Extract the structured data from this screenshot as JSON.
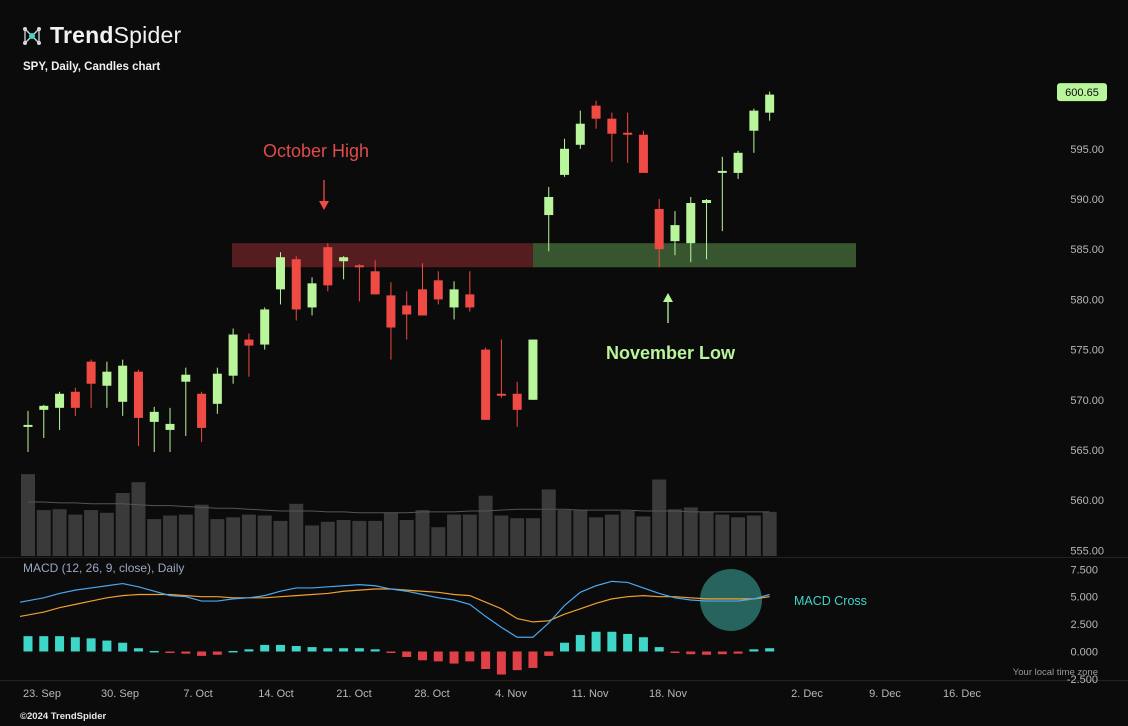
{
  "brand": {
    "name_bold": "Trend",
    "name_light": "Spider",
    "logo_icon": "spider-network-icon"
  },
  "subtitle": "SPY, Daily, Candles chart",
  "footer": "©2024 TrendSpider",
  "local_time_note": "Your local time zone",
  "annotations": {
    "october_high": "October High",
    "november_low": "November Low",
    "macd_cross": "MACD Cross"
  },
  "last_price": "600.65",
  "colors": {
    "up": "#b8f59b",
    "down": "#f04a45",
    "volume": "#3a3a3a",
    "macd_line": "#4aa8f0",
    "signal_line": "#f0a030",
    "hist_pos": "#3fd6c8",
    "hist_neg": "#e04048",
    "resistance_zone": "#5a1f22",
    "support_zone": "#3a5a30",
    "macd_cross_circle": "#2a6e66"
  },
  "chart_data": [
    {
      "type": "candlestick",
      "title": "SPY, Daily, Candles chart",
      "y_axis": {
        "ticks": [
          "555.00",
          "560.00",
          "565.00",
          "570.00",
          "575.00",
          "580.00",
          "585.00",
          "590.00",
          "595.00"
        ],
        "range": [
          553.5,
          603
        ]
      },
      "x_axis_labels": [
        "23. Sep",
        "30. Sep",
        "7. Oct",
        "14. Oct",
        "21. Oct",
        "28. Oct",
        "4. Nov",
        "11. Nov",
        "18. Nov",
        "2. Dec",
        "9. Dec",
        "16. Dec"
      ],
      "candles": [
        {
          "date": "2024-09-23",
          "o": 567.3,
          "h": 568.9,
          "l": 564.8,
          "c": 567.5
        },
        {
          "date": "2024-09-24",
          "o": 569.0,
          "h": 569.5,
          "l": 566.2,
          "c": 569.4
        },
        {
          "date": "2024-09-25",
          "o": 569.2,
          "h": 570.8,
          "l": 567.0,
          "c": 570.6
        },
        {
          "date": "2024-09-26",
          "o": 570.8,
          "h": 571.2,
          "l": 568.4,
          "c": 569.2
        },
        {
          "date": "2024-09-27",
          "o": 573.8,
          "h": 574.0,
          "l": 569.2,
          "c": 571.6
        },
        {
          "date": "2024-09-30",
          "o": 571.4,
          "h": 573.8,
          "l": 569.2,
          "c": 572.8
        },
        {
          "date": "2024-10-01",
          "o": 569.8,
          "h": 574.0,
          "l": 568.4,
          "c": 573.4
        },
        {
          "date": "2024-10-02",
          "o": 572.8,
          "h": 573.0,
          "l": 565.4,
          "c": 568.2
        },
        {
          "date": "2024-10-03",
          "o": 567.8,
          "h": 569.3,
          "l": 564.8,
          "c": 568.8
        },
        {
          "date": "2024-10-04",
          "o": 567.0,
          "h": 569.2,
          "l": 564.8,
          "c": 567.6
        },
        {
          "date": "2024-10-07",
          "o": 571.8,
          "h": 573.2,
          "l": 566.4,
          "c": 572.5
        },
        {
          "date": "2024-10-08",
          "o": 570.6,
          "h": 570.8,
          "l": 565.8,
          "c": 567.2
        },
        {
          "date": "2024-10-09",
          "o": 569.6,
          "h": 573.2,
          "l": 568.6,
          "c": 572.6
        },
        {
          "date": "2024-10-10",
          "o": 572.4,
          "h": 577.1,
          "l": 571.6,
          "c": 576.5
        },
        {
          "date": "2024-10-11",
          "o": 576.0,
          "h": 576.6,
          "l": 572.3,
          "c": 575.4
        },
        {
          "date": "2024-10-14",
          "o": 575.5,
          "h": 579.2,
          "l": 575.0,
          "c": 579.0
        },
        {
          "date": "2024-10-15",
          "o": 581.0,
          "h": 584.7,
          "l": 579.5,
          "c": 584.2
        },
        {
          "date": "2024-10-16",
          "o": 584.0,
          "h": 584.3,
          "l": 577.9,
          "c": 579.0
        },
        {
          "date": "2024-10-17",
          "o": 579.2,
          "h": 582.2,
          "l": 578.4,
          "c": 581.6
        },
        {
          "date": "2024-10-18",
          "o": 585.2,
          "h": 585.6,
          "l": 580.8,
          "c": 581.4
        },
        {
          "date": "2024-10-21",
          "o": 583.8,
          "h": 584.3,
          "l": 582.0,
          "c": 584.2
        },
        {
          "date": "2024-10-22",
          "o": 583.4,
          "h": 583.5,
          "l": 579.8,
          "c": 583.2
        },
        {
          "date": "2024-10-23",
          "o": 582.8,
          "h": 583.9,
          "l": 580.5,
          "c": 580.5
        },
        {
          "date": "2024-10-24",
          "o": 580.4,
          "h": 581.7,
          "l": 574.0,
          "c": 577.2
        },
        {
          "date": "2024-10-25",
          "o": 579.4,
          "h": 580.8,
          "l": 576.0,
          "c": 578.5
        },
        {
          "date": "2024-10-28",
          "o": 581.0,
          "h": 583.6,
          "l": 578.4,
          "c": 578.4
        },
        {
          "date": "2024-10-29",
          "o": 581.9,
          "h": 582.8,
          "l": 579.5,
          "c": 580.0
        },
        {
          "date": "2024-10-30",
          "o": 579.2,
          "h": 581.8,
          "l": 578.0,
          "c": 581.0
        },
        {
          "date": "2024-10-31",
          "o": 580.5,
          "h": 582.8,
          "l": 578.8,
          "c": 579.2
        },
        {
          "date": "2024-11-01",
          "o": 575.0,
          "h": 575.2,
          "l": 568.0,
          "c": 568.0
        },
        {
          "date": "2024-11-04",
          "o": 570.6,
          "h": 576.0,
          "l": 570.2,
          "c": 570.4
        },
        {
          "date": "2024-11-05",
          "o": 570.6,
          "h": 571.8,
          "l": 567.3,
          "c": 569.0
        },
        {
          "date": "2024-11-06",
          "o": 570.0,
          "h": 576.0,
          "l": 570.0,
          "c": 576.0
        },
        {
          "date": "2024-11-07",
          "o": 588.4,
          "h": 591.2,
          "l": 584.8,
          "c": 590.2
        },
        {
          "date": "2024-11-08",
          "o": 592.4,
          "h": 596.0,
          "l": 592.2,
          "c": 595.0
        },
        {
          "date": "2024-11-11",
          "o": 595.4,
          "h": 598.8,
          "l": 595.0,
          "c": 597.5
        },
        {
          "date": "2024-11-12",
          "o": 599.3,
          "h": 599.8,
          "l": 597.0,
          "c": 598.0
        },
        {
          "date": "2024-11-13",
          "o": 598.0,
          "h": 598.6,
          "l": 593.7,
          "c": 596.5
        },
        {
          "date": "2024-11-14",
          "o": 596.6,
          "h": 598.6,
          "l": 593.6,
          "c": 596.4
        },
        {
          "date": "2024-11-15",
          "o": 596.4,
          "h": 596.8,
          "l": 592.6,
          "c": 592.6
        },
        {
          "date": "2024-11-18",
          "o": 589.0,
          "h": 590.0,
          "l": 583.2,
          "c": 585.0
        },
        {
          "date": "2024-11-19",
          "o": 585.8,
          "h": 588.8,
          "l": 584.4,
          "c": 587.4
        },
        {
          "date": "2024-11-20",
          "o": 585.6,
          "h": 590.2,
          "l": 583.7,
          "c": 589.6
        },
        {
          "date": "2024-11-21",
          "o": 589.6,
          "h": 590.0,
          "l": 584.0,
          "c": 589.9
        },
        {
          "date": "2024-11-22",
          "o": 592.6,
          "h": 594.2,
          "l": 586.8,
          "c": 592.8
        },
        {
          "date": "2024-11-25",
          "o": 592.6,
          "h": 594.8,
          "l": 592.0,
          "c": 594.6
        },
        {
          "date": "2024-11-26",
          "o": 596.8,
          "h": 599.0,
          "l": 594.6,
          "c": 598.8
        },
        {
          "date": "2024-11-27",
          "o": 598.6,
          "h": 600.7,
          "l": 597.8,
          "c": 600.4
        }
      ],
      "volume": [
        9.1,
        5.1,
        5.2,
        4.6,
        5.1,
        4.8,
        7.0,
        8.2,
        4.1,
        4.5,
        4.6,
        5.7,
        4.1,
        4.3,
        4.6,
        4.5,
        3.9,
        5.8,
        3.4,
        3.8,
        4.0,
        3.9,
        3.9,
        4.8,
        4.0,
        5.1,
        3.2,
        4.6,
        4.6,
        6.7,
        4.5,
        4.2,
        4.2,
        7.4,
        5.1,
        5.1,
        4.3,
        4.6,
        5.0,
        4.4,
        8.5,
        5.2,
        5.4,
        4.9,
        4.6,
        4.3,
        4.5,
        4.9
      ],
      "volume_ma": [
        6.0,
        6.0,
        5.9,
        5.9,
        5.8,
        5.8,
        5.8,
        5.7,
        5.6,
        5.6,
        5.5,
        5.4,
        5.3,
        5.3,
        5.2,
        5.1,
        5.0,
        5.0,
        5.0,
        4.9,
        4.9,
        4.8,
        4.8,
        4.8,
        4.8,
        4.9,
        4.9,
        4.9,
        5.0,
        5.0,
        5.1,
        5.2,
        5.2,
        5.2,
        5.2,
        5.1,
        5.1,
        5.1,
        5.1,
        5.0,
        5.0,
        5.0,
        4.9,
        4.9,
        4.9,
        4.9,
        4.9,
        4.9
      ],
      "zones": [
        {
          "name": "October High resistance",
          "from": "2024-10-09",
          "to": "2024-11-06",
          "low": 583.2,
          "high": 585.6
        },
        {
          "name": "November Low support",
          "from": "2024-11-06",
          "to": "2024-12-12",
          "low": 583.2,
          "high": 585.6
        }
      ]
    },
    {
      "type": "macd",
      "title": "MACD (12, 26, 9, close), Daily",
      "y_axis": {
        "ticks": [
          "7.500",
          "5.000",
          "2.500",
          "0.000",
          "-2.500"
        ],
        "range": [
          -2.8,
          8.2
        ]
      },
      "macd": [
        4.5,
        4.9,
        5.3,
        5.6,
        5.8,
        6.0,
        6.2,
        5.9,
        5.5,
        5.1,
        5.0,
        4.6,
        4.6,
        4.8,
        4.9,
        5.1,
        5.5,
        5.8,
        5.8,
        5.9,
        6.0,
        6.1,
        6.0,
        5.7,
        5.5,
        5.2,
        4.9,
        4.7,
        4.3,
        3.2,
        2.2,
        1.3,
        1.3,
        2.6,
        4.2,
        5.4,
        6.0,
        6.4,
        6.3,
        5.8,
        5.3,
        4.9,
        4.7,
        4.6,
        4.6,
        4.6,
        4.8,
        5.2
      ],
      "signal": [
        3.2,
        3.6,
        4.0,
        4.3,
        4.6,
        4.9,
        5.1,
        5.2,
        5.2,
        5.2,
        5.1,
        5.0,
        5.0,
        4.9,
        4.9,
        4.9,
        5.0,
        5.1,
        5.2,
        5.3,
        5.5,
        5.6,
        5.7,
        5.7,
        5.6,
        5.5,
        5.4,
        5.2,
        5.1,
        4.5,
        3.9,
        3.0,
        2.7,
        2.8,
        3.4,
        3.9,
        4.4,
        4.8,
        5.0,
        5.1,
        5.0,
        5.0,
        4.9,
        4.8,
        4.8,
        4.8,
        4.8,
        5.0
      ],
      "histogram": [
        1.4,
        1.4,
        1.4,
        1.3,
        1.2,
        1.0,
        0.8,
        0.3,
        0.05,
        -0.1,
        -0.2,
        -0.4,
        -0.3,
        0.05,
        0.2,
        0.6,
        0.6,
        0.5,
        0.4,
        0.3,
        0.3,
        0.3,
        0.2,
        -0.1,
        -0.5,
        -0.8,
        -0.9,
        -1.1,
        -0.9,
        -1.6,
        -2.1,
        -1.7,
        -1.5,
        -0.4,
        0.8,
        1.5,
        1.8,
        1.8,
        1.6,
        1.3,
        0.4,
        -0.1,
        -0.25,
        -0.3,
        -0.25,
        -0.2,
        0.2,
        0.3
      ]
    }
  ]
}
